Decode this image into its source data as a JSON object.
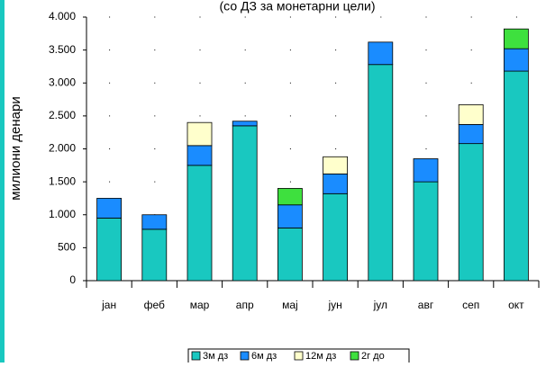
{
  "chart_data": {
    "type": "stacked_bar",
    "title": "(со ДЗ за монетарни цели)",
    "y_label": "милиони денари",
    "categories": [
      "јан",
      "феб",
      "мар",
      "апр",
      "мај",
      "јун",
      "јул",
      "авг",
      "сеп",
      "окт"
    ],
    "series": [
      {
        "name": "3м дз",
        "color": "#19c8c0",
        "values": [
          950,
          780,
          1750,
          2350,
          800,
          1320,
          3280,
          1500,
          2080,
          3180
        ]
      },
      {
        "name": "6м дз",
        "color": "#1a8cff",
        "values": [
          300,
          220,
          300,
          70,
          350,
          300,
          340,
          350,
          290,
          340
        ]
      },
      {
        "name": "12м дз",
        "color": "#ffffcc",
        "values": [
          null,
          null,
          350,
          null,
          null,
          260,
          null,
          null,
          300,
          null
        ]
      },
      {
        "name": "2г до",
        "color": "#3ee03e",
        "values": [
          null,
          null,
          null,
          null,
          250,
          null,
          null,
          null,
          null,
          300
        ]
      }
    ],
    "ylim": [
      0,
      4000
    ],
    "yticks": [
      0,
      500,
      {
        "value": 1000,
        "label": "1.000"
      },
      {
        "value": 1500,
        "label": "1.500"
      },
      {
        "value": 2000,
        "label": "2.000"
      },
      {
        "value": 2500,
        "label": "2.500"
      },
      {
        "value": 3000,
        "label": "3.000"
      },
      {
        "value": 3500,
        "label": "3.500"
      },
      {
        "value": 4000,
        "label": "4.000"
      }
    ],
    "grid": true
  }
}
